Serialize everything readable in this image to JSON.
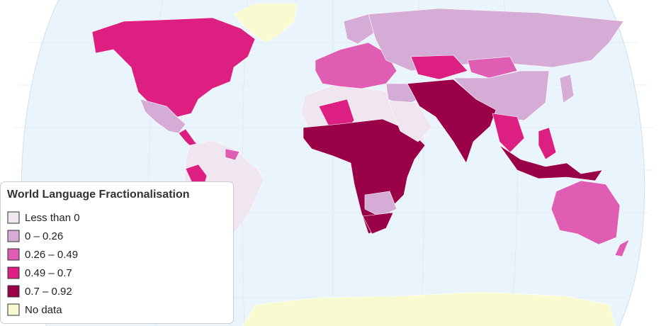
{
  "legend": {
    "title": "World Language Fractionalisation",
    "items": [
      {
        "label": "Less than 0",
        "color": "#efe6f0"
      },
      {
        "label": "0 – 0.26",
        "color": "#d5acd6"
      },
      {
        "label": "0.26 – 0.49",
        "color": "#df5db2"
      },
      {
        "label": "0.49 – 0.7",
        "color": "#dc1f80"
      },
      {
        "label": "0.7 – 0.92",
        "color": "#9a0047"
      },
      {
        "label": "No data",
        "color": "#fafad0"
      }
    ]
  }
}
